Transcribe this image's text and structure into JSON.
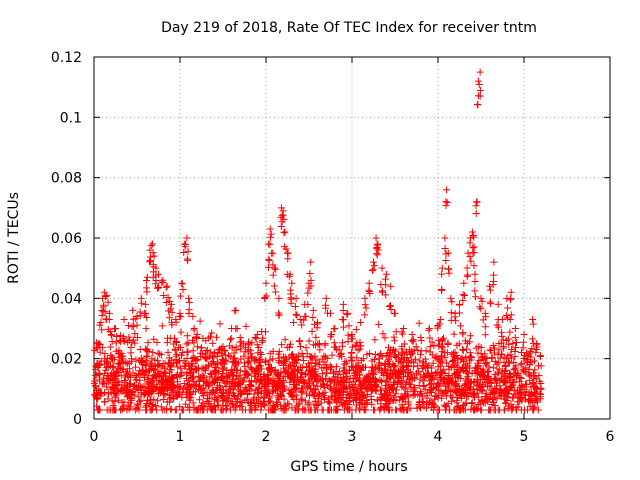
{
  "chart_data": {
    "type": "scatter",
    "title": "Day 219 of 2018, Rate Of TEC Index for receiver tntm",
    "xlabel": "GPS time / hours",
    "ylabel": "ROTI / TECUs",
    "xlim": [
      0,
      6
    ],
    "ylim": [
      0,
      0.12
    ],
    "xticks": [
      0,
      1,
      2,
      3,
      4,
      5,
      6
    ],
    "xtick_labels": [
      "0",
      "1",
      "2",
      "3",
      "4",
      "5",
      "6"
    ],
    "yticks": [
      0,
      0.02,
      0.04,
      0.06,
      0.08,
      0.1,
      0.12
    ],
    "ytick_labels": [
      "0",
      "0.02",
      "0.04",
      "0.06",
      "0.08",
      "0.1",
      "0.12"
    ],
    "grid": true,
    "marker": "+",
    "color": "#ff0000",
    "x_data_range": [
      0,
      5.2
    ],
    "series": [
      {
        "name": "ROTI",
        "points": [
          [
            0.05,
            0.025
          ],
          [
            0.08,
            0.032
          ],
          [
            0.1,
            0.04
          ],
          [
            0.12,
            0.042
          ],
          [
            0.15,
            0.041
          ],
          [
            0.18,
            0.035
          ],
          [
            0.2,
            0.028
          ],
          [
            0.25,
            0.03
          ],
          [
            0.3,
            0.026
          ],
          [
            0.35,
            0.033
          ],
          [
            0.4,
            0.031
          ],
          [
            0.45,
            0.036
          ],
          [
            0.5,
            0.034
          ],
          [
            0.55,
            0.04
          ],
          [
            0.6,
            0.038
          ],
          [
            0.62,
            0.047
          ],
          [
            0.65,
            0.056
          ],
          [
            0.68,
            0.058
          ],
          [
            0.7,
            0.054
          ],
          [
            0.72,
            0.05
          ],
          [
            0.75,
            0.048
          ],
          [
            0.8,
            0.046
          ],
          [
            0.85,
            0.044
          ],
          [
            0.88,
            0.039
          ],
          [
            0.9,
            0.038
          ],
          [
            0.95,
            0.033
          ],
          [
            1.0,
            0.035
          ],
          [
            1.02,
            0.045
          ],
          [
            1.05,
            0.058
          ],
          [
            1.08,
            0.06
          ],
          [
            1.1,
            0.04
          ],
          [
            1.15,
            0.034
          ],
          [
            1.2,
            0.028
          ],
          [
            1.3,
            0.026
          ],
          [
            1.4,
            0.022
          ],
          [
            1.5,
            0.024
          ],
          [
            1.6,
            0.03
          ],
          [
            1.65,
            0.036
          ],
          [
            1.7,
            0.027
          ],
          [
            1.8,
            0.025
          ],
          [
            1.9,
            0.028
          ],
          [
            1.95,
            0.029
          ],
          [
            2.0,
            0.045
          ],
          [
            2.03,
            0.058
          ],
          [
            2.05,
            0.063
          ],
          [
            2.08,
            0.055
          ],
          [
            2.1,
            0.05
          ],
          [
            2.15,
            0.04
          ],
          [
            2.18,
            0.07
          ],
          [
            2.2,
            0.069
          ],
          [
            2.22,
            0.062
          ],
          [
            2.25,
            0.055
          ],
          [
            2.28,
            0.048
          ],
          [
            2.3,
            0.045
          ],
          [
            2.35,
            0.04
          ],
          [
            2.4,
            0.033
          ],
          [
            2.45,
            0.038
          ],
          [
            2.5,
            0.045
          ],
          [
            2.52,
            0.052
          ],
          [
            2.55,
            0.036
          ],
          [
            2.6,
            0.032
          ],
          [
            2.7,
            0.04
          ],
          [
            2.75,
            0.035
          ],
          [
            2.8,
            0.03
          ],
          [
            2.9,
            0.038
          ],
          [
            2.95,
            0.035
          ],
          [
            3.0,
            0.028
          ],
          [
            3.1,
            0.032
          ],
          [
            3.15,
            0.04
          ],
          [
            3.2,
            0.045
          ],
          [
            3.25,
            0.052
          ],
          [
            3.28,
            0.06
          ],
          [
            3.3,
            0.058
          ],
          [
            3.35,
            0.05
          ],
          [
            3.4,
            0.048
          ],
          [
            3.45,
            0.044
          ],
          [
            3.5,
            0.035
          ],
          [
            3.6,
            0.03
          ],
          [
            3.7,
            0.028
          ],
          [
            3.8,
            0.027
          ],
          [
            3.9,
            0.03
          ],
          [
            4.0,
            0.031
          ],
          [
            4.05,
            0.05
          ],
          [
            4.08,
            0.06
          ],
          [
            4.1,
            0.076
          ],
          [
            4.12,
            0.055
          ],
          [
            4.15,
            0.04
          ],
          [
            4.2,
            0.035
          ],
          [
            4.25,
            0.038
          ],
          [
            4.3,
            0.045
          ],
          [
            4.35,
            0.055
          ],
          [
            4.38,
            0.06
          ],
          [
            4.4,
            0.062
          ],
          [
            4.42,
            0.057
          ],
          [
            4.43,
            0.048
          ],
          [
            4.45,
            0.072
          ],
          [
            4.47,
            0.112
          ],
          [
            4.49,
            0.115
          ],
          [
            4.5,
            0.04
          ],
          [
            4.55,
            0.035
          ],
          [
            4.6,
            0.044
          ],
          [
            4.65,
            0.052
          ],
          [
            4.7,
            0.038
          ],
          [
            4.75,
            0.033
          ],
          [
            4.8,
            0.04
          ],
          [
            4.85,
            0.042
          ],
          [
            4.9,
            0.03
          ],
          [
            5.0,
            0.028
          ],
          [
            5.1,
            0.033
          ],
          [
            5.15,
            0.025
          ]
        ],
        "baseline_band": [
          0.003,
          0.025
        ],
        "baseline_typical": 0.012
      }
    ]
  }
}
